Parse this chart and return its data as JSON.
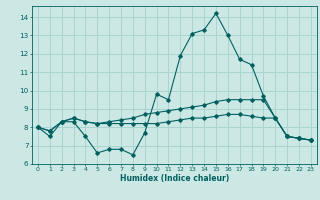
{
  "title": "",
  "xlabel": "Humidex (Indice chaleur)",
  "background_color": "#cce8e4",
  "grid_color": "#aad4d0",
  "line_color": "#006060",
  "xlim": [
    -0.5,
    23.5
  ],
  "ylim": [
    6,
    14.6
  ],
  "yticks": [
    6,
    7,
    8,
    9,
    10,
    11,
    12,
    13,
    14
  ],
  "xticks": [
    0,
    1,
    2,
    3,
    4,
    5,
    6,
    7,
    8,
    9,
    10,
    11,
    12,
    13,
    14,
    15,
    16,
    17,
    18,
    19,
    20,
    21,
    22,
    23
  ],
  "line1_x": [
    0,
    1,
    2,
    3,
    4,
    5,
    6,
    7,
    8,
    9,
    10,
    11,
    12,
    13,
    14,
    15,
    16,
    17,
    18,
    19,
    20,
    21,
    22,
    23
  ],
  "line1_y": [
    8.0,
    7.5,
    8.3,
    8.3,
    7.5,
    6.6,
    6.8,
    6.8,
    6.5,
    7.7,
    9.8,
    9.5,
    11.9,
    13.1,
    13.3,
    14.2,
    13.0,
    11.7,
    11.4,
    9.7,
    8.5,
    7.5,
    7.4,
    7.3
  ],
  "line2_x": [
    0,
    1,
    2,
    3,
    4,
    5,
    6,
    7,
    8,
    9,
    10,
    11,
    12,
    13,
    14,
    15,
    16,
    17,
    18,
    19,
    20,
    21,
    22,
    23
  ],
  "line2_y": [
    8.0,
    7.8,
    8.3,
    8.5,
    8.3,
    8.2,
    8.3,
    8.4,
    8.5,
    8.7,
    8.8,
    8.9,
    9.0,
    9.1,
    9.2,
    9.4,
    9.5,
    9.5,
    9.5,
    9.5,
    8.5,
    7.5,
    7.4,
    7.3
  ],
  "line3_x": [
    0,
    1,
    2,
    3,
    4,
    5,
    6,
    7,
    8,
    9,
    10,
    11,
    12,
    13,
    14,
    15,
    16,
    17,
    18,
    19,
    20,
    21,
    22,
    23
  ],
  "line3_y": [
    8.0,
    7.8,
    8.3,
    8.5,
    8.3,
    8.2,
    8.2,
    8.2,
    8.2,
    8.2,
    8.2,
    8.3,
    8.4,
    8.5,
    8.5,
    8.6,
    8.7,
    8.7,
    8.6,
    8.5,
    8.5,
    7.5,
    7.4,
    7.3
  ]
}
